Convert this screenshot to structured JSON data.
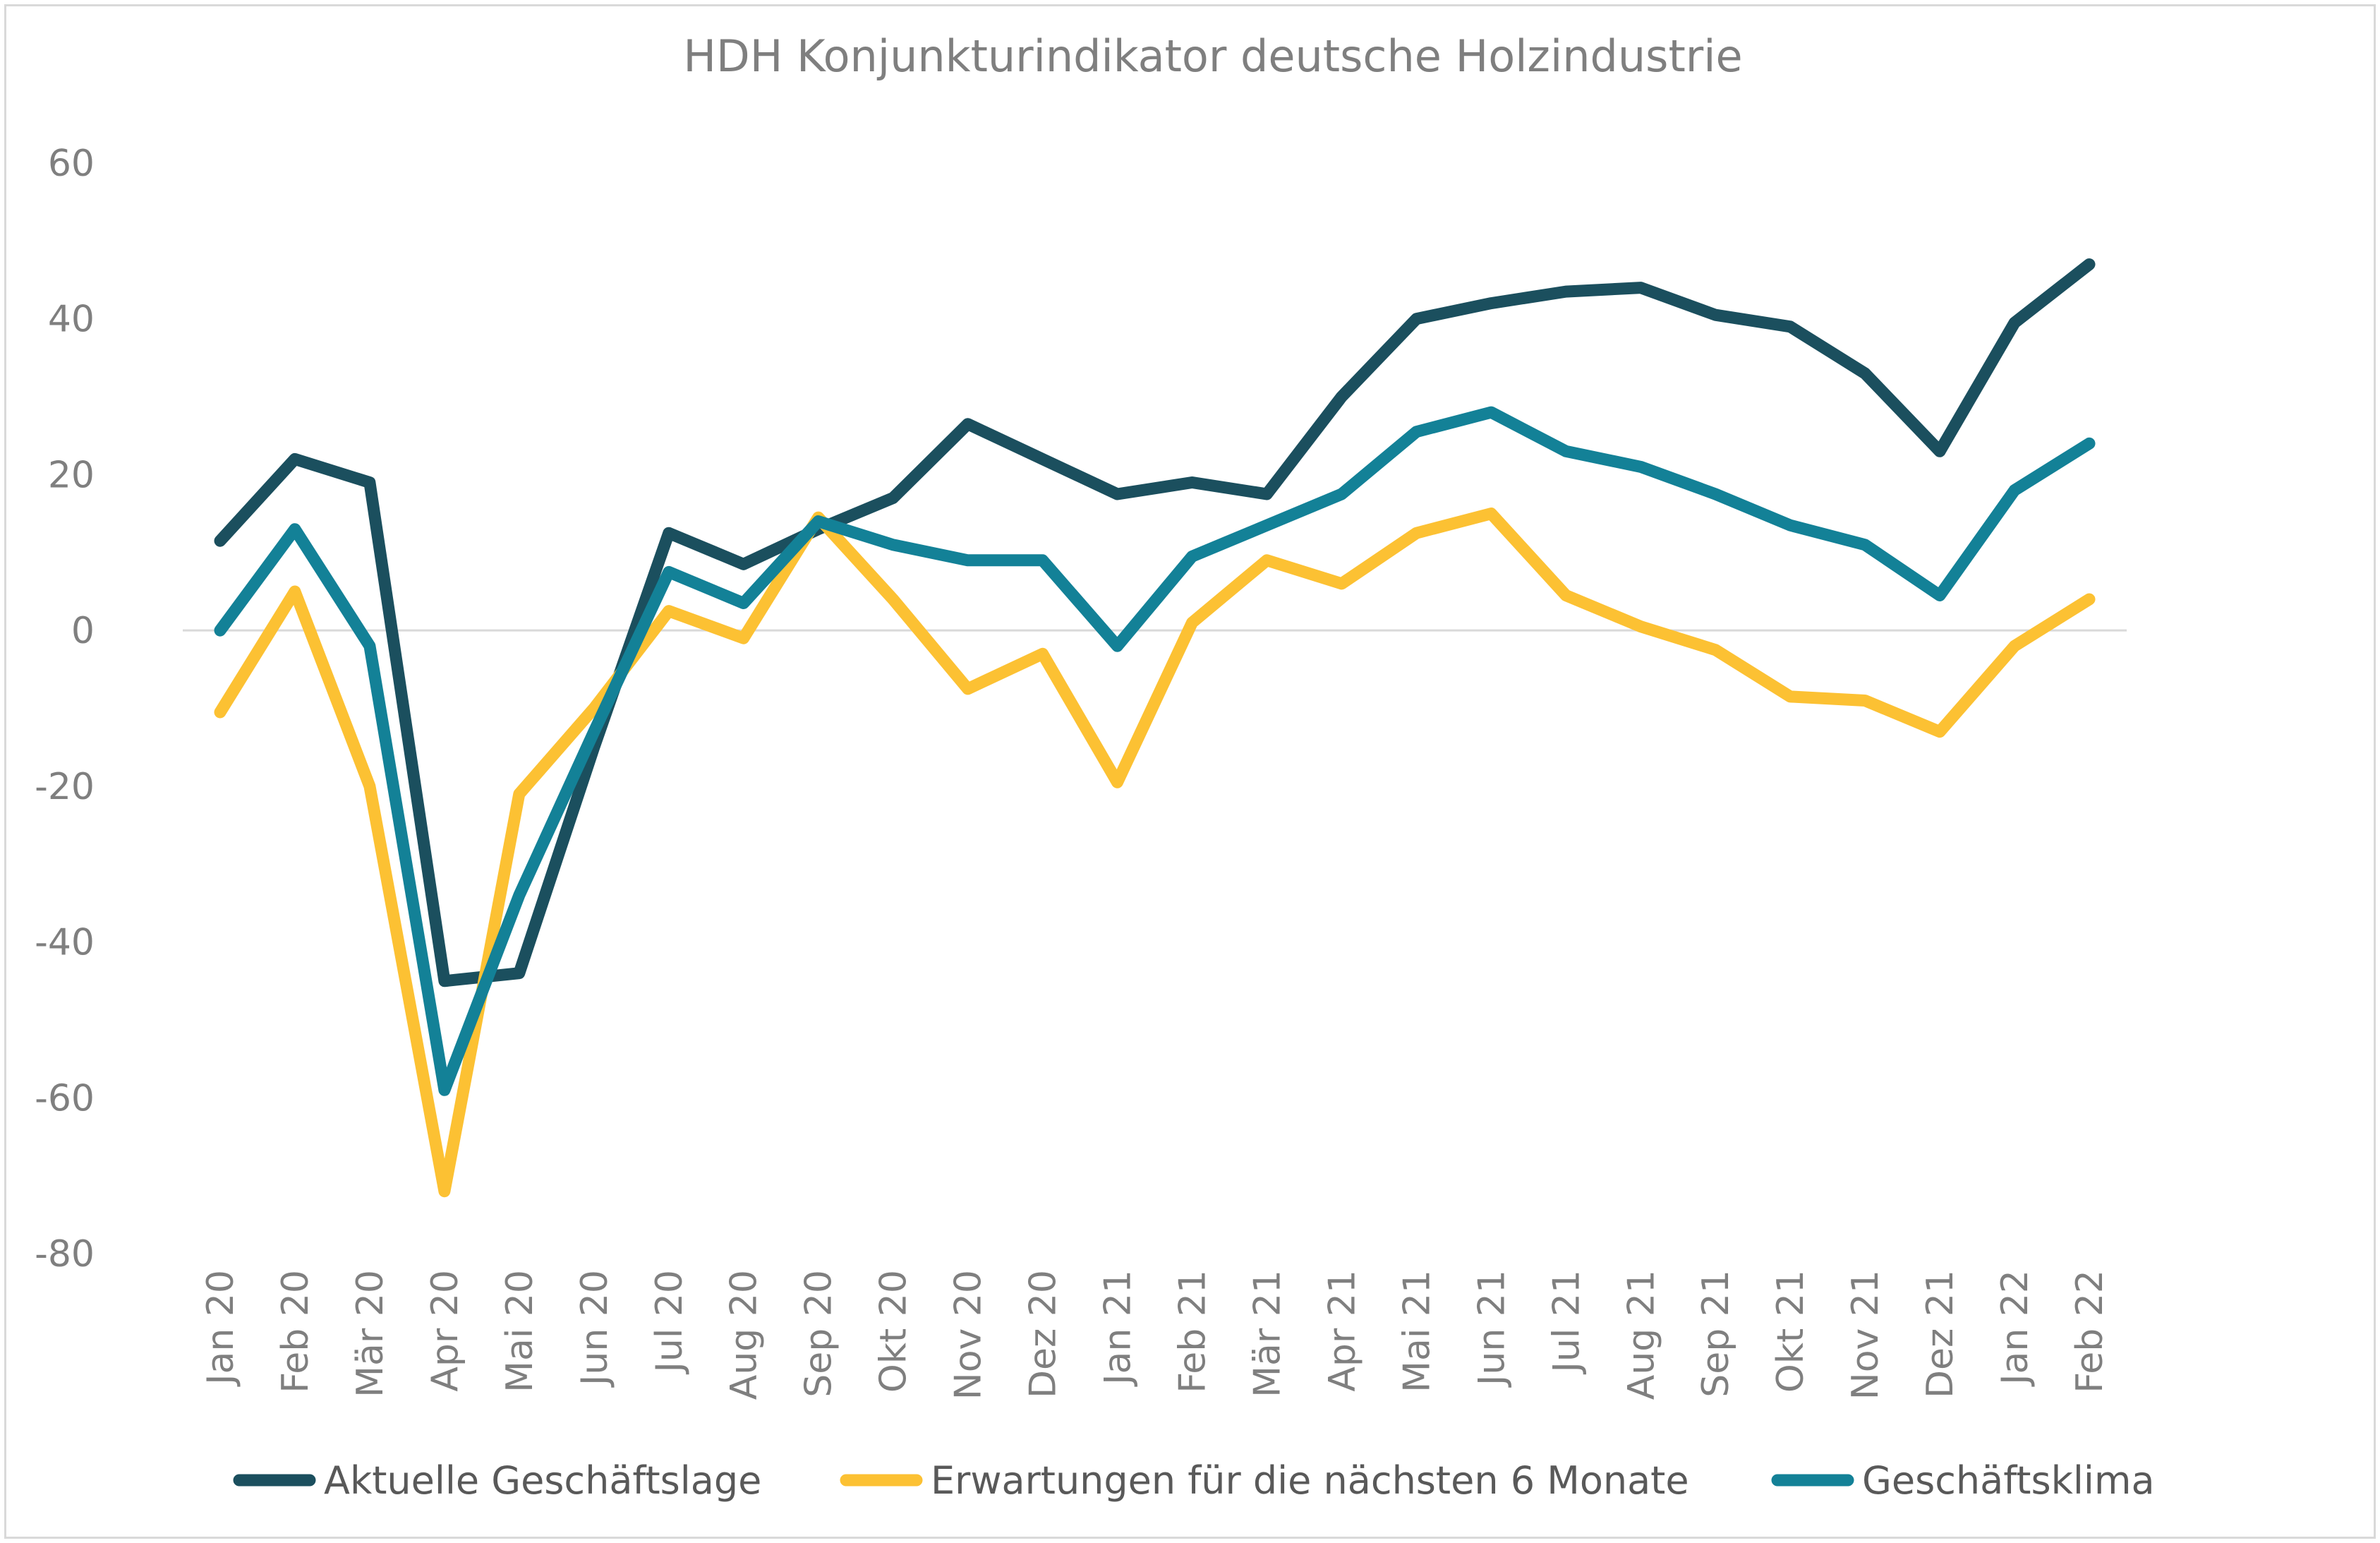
{
  "chart_data": {
    "type": "line",
    "title": "HDH Konjunkturindikator deutsche Holzindustrie",
    "xlabel": "",
    "ylabel": "",
    "categories": [
      "Jan 20",
      "Feb 20",
      "Mär 20",
      "Apr 20",
      "Mai 20",
      "Jun 20",
      "Jul 20",
      "Aug 20",
      "Sep 20",
      "Okt 20",
      "Nov 20",
      "Dez 20",
      "Jan 21",
      "Feb 21",
      "Mär 21",
      "Apr 21",
      "Mai 21",
      "Jun 21",
      "Jul 21",
      "Aug 21",
      "Sep 21",
      "Okt 21",
      "Nov 21",
      "Dez 21",
      "Jan 22",
      "Feb 22"
    ],
    "ylim": [
      -80,
      60
    ],
    "yticks": [
      60,
      40,
      20,
      0,
      -20,
      -40,
      -60,
      -80
    ],
    "grid": "zero-line only",
    "legend_position": "bottom",
    "series": [
      {
        "name": "Aktuelle Geschäftslage",
        "color": "#1b4f5e",
        "values": [
          11.5,
          22,
          19,
          -45,
          -44,
          -15,
          12.5,
          8.5,
          13,
          17,
          26.5,
          22,
          17.5,
          19,
          17.5,
          30,
          40,
          42,
          43.5,
          44,
          40.5,
          39,
          33,
          23,
          39.5,
          47
        ]
      },
      {
        "name": "Erwartungen für die nächsten 6 Monate",
        "color": "#fcc133",
        "values": [
          -10.5,
          5,
          -20,
          -72,
          -21,
          -10,
          2.5,
          -1,
          14.5,
          4,
          -7.5,
          -3,
          -19.5,
          1,
          9,
          6,
          12.5,
          15,
          4.5,
          0.5,
          -2.5,
          -8.5,
          -9,
          -13,
          -2,
          4
        ]
      },
      {
        "name": "Geschäftsklima",
        "color": "#138197",
        "values": [
          0,
          13,
          -2,
          -59,
          -34,
          -13,
          7.5,
          3.5,
          14,
          11,
          9,
          9,
          -2,
          9.5,
          13.5,
          17.5,
          25.5,
          28,
          23,
          21,
          17.5,
          13.5,
          11,
          4.5,
          18,
          24
        ]
      }
    ]
  }
}
